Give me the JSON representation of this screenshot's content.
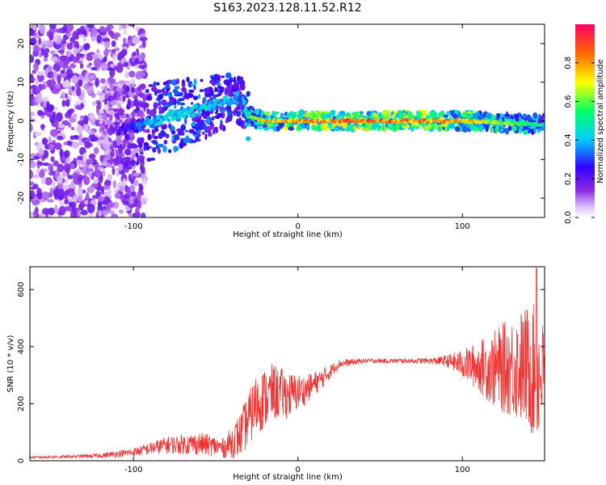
{
  "title": "S163.2023.128.11.52.R12",
  "chart_data": [
    {
      "type": "heatmap",
      "xlabel": "Height of straight line (km)",
      "ylabel": "Frequency (Hz)",
      "xlim": [
        -163,
        150
      ],
      "ylim": [
        -25,
        25
      ],
      "xticks": [
        -100,
        0,
        100
      ],
      "yticks": [
        -20,
        -10,
        0,
        10,
        20
      ],
      "colorbar": {
        "label": "Normalized spectral amplitude",
        "range": [
          0,
          1
        ],
        "ticks": [
          0.0,
          0.2,
          0.4,
          0.6,
          0.8
        ],
        "tick_labels": [
          "0.0",
          "0.2",
          "0.4",
          "0.6",
          "0.8"
        ],
        "colormap": [
          "#ffffff",
          "#d9b8ff",
          "#8a2be2",
          "#3300ff",
          "#00ccff",
          "#00ff66",
          "#ffff00",
          "#ff6600",
          "#ff0066"
        ]
      },
      "ridge": {
        "x": [
          -120,
          -100,
          -80,
          -60,
          -45,
          -35,
          -30,
          -20,
          0,
          50,
          100,
          150
        ],
        "freq_hz": [
          -2,
          -2,
          1,
          3,
          5,
          6,
          1,
          0,
          0,
          0,
          0,
          -1
        ],
        "amplitude": [
          0.1,
          0.3,
          0.45,
          0.45,
          0.4,
          0.35,
          0.55,
          0.8,
          0.85,
          0.9,
          0.8,
          0.5
        ]
      }
    },
    {
      "type": "line",
      "xlabel": "Height of straight line (km)",
      "ylabel": "SNR (10 * v/v)",
      "xlim": [
        -163,
        150
      ],
      "ylim": [
        0,
        680
      ],
      "xticks": [
        -100,
        0,
        100
      ],
      "yticks": [
        0,
        200,
        400,
        600
      ],
      "color": "#ee3333",
      "envelope": {
        "x": [
          -163,
          -140,
          -120,
          -100,
          -80,
          -60,
          -45,
          -35,
          -25,
          -15,
          -5,
          5,
          15,
          25,
          40,
          60,
          80,
          90,
          100,
          110,
          120,
          130,
          140,
          145,
          150
        ],
        "mean": [
          12,
          14,
          18,
          30,
          55,
          60,
          45,
          90,
          200,
          240,
          230,
          250,
          290,
          340,
          350,
          350,
          350,
          350,
          340,
          330,
          320,
          330,
          330,
          300,
          310
        ],
        "amp": [
          4,
          5,
          8,
          15,
          30,
          40,
          35,
          80,
          110,
          100,
          80,
          50,
          35,
          15,
          8,
          8,
          10,
          20,
          50,
          90,
          140,
          180,
          220,
          250,
          160
        ]
      },
      "peak": {
        "x": 145,
        "y": 675
      }
    }
  ]
}
